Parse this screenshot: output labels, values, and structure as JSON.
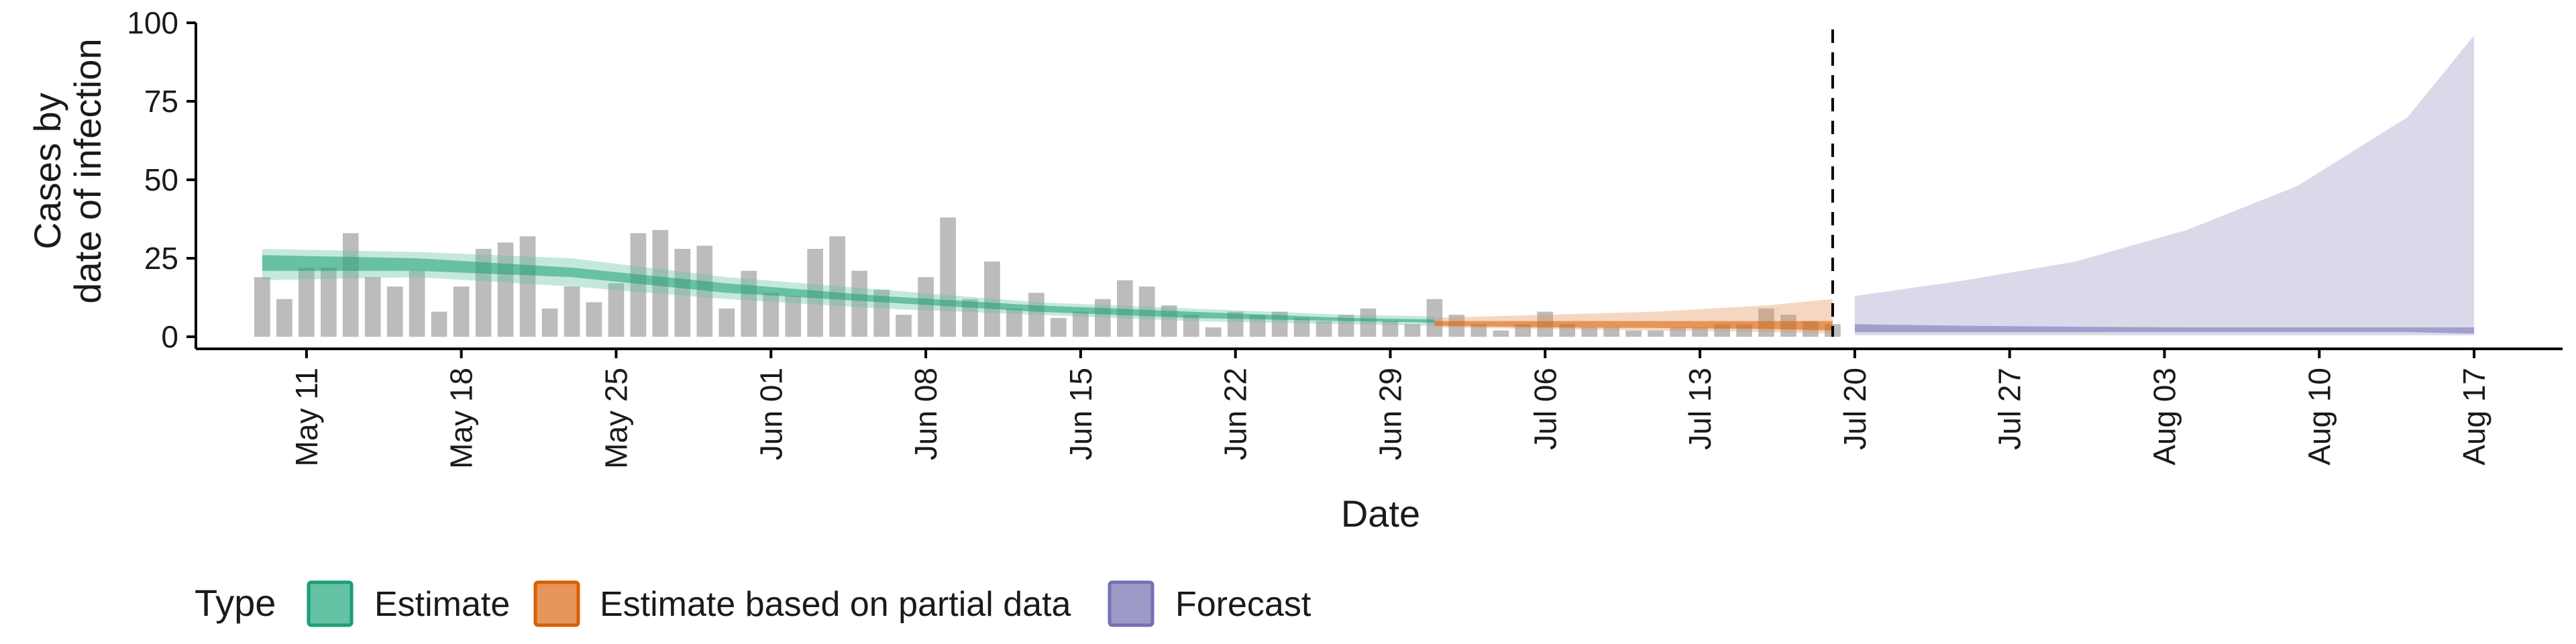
{
  "chart_data": {
    "type": "bar",
    "xlabel": "Date",
    "ylabel_lines": [
      "Cases by",
      "date of infection"
    ],
    "ylim": [
      0,
      100
    ],
    "yticks": [
      0,
      25,
      50,
      75,
      100
    ],
    "x_start": "2020-05-09",
    "x_end": "2020-08-17",
    "xticks": [
      {
        "date": "2020-05-11",
        "label": "May 11"
      },
      {
        "date": "2020-05-18",
        "label": "May 18"
      },
      {
        "date": "2020-05-25",
        "label": "May 25"
      },
      {
        "date": "2020-06-01",
        "label": "Jun 01"
      },
      {
        "date": "2020-06-08",
        "label": "Jun 08"
      },
      {
        "date": "2020-06-15",
        "label": "Jun 15"
      },
      {
        "date": "2020-06-22",
        "label": "Jun 22"
      },
      {
        "date": "2020-06-29",
        "label": "Jun 29"
      },
      {
        "date": "2020-07-06",
        "label": "Jul 06"
      },
      {
        "date": "2020-07-13",
        "label": "Jul 13"
      },
      {
        "date": "2020-07-20",
        "label": "Jul 20"
      },
      {
        "date": "2020-07-27",
        "label": "Jul 27"
      },
      {
        "date": "2020-08-03",
        "label": "Aug 03"
      },
      {
        "date": "2020-08-10",
        "label": "Aug 10"
      },
      {
        "date": "2020-08-17",
        "label": "Aug 17"
      }
    ],
    "vline_date": "2020-07-19",
    "bars_start": "2020-05-09",
    "bar_values": [
      19,
      12,
      22,
      22,
      33,
      19,
      16,
      21,
      8,
      16,
      28,
      30,
      32,
      9,
      16,
      11,
      17,
      33,
      34,
      28,
      29,
      9,
      21,
      14,
      13,
      28,
      32,
      21,
      15,
      7,
      19,
      38,
      12,
      24,
      9,
      14,
      6,
      8,
      12,
      18,
      16,
      10,
      7,
      3,
      8,
      7,
      8,
      6,
      5,
      7,
      9,
      5,
      4,
      12,
      7,
      4,
      2,
      4,
      8,
      4,
      3,
      3,
      2,
      2,
      3,
      3,
      4,
      4,
      9,
      7,
      5,
      4
    ],
    "series": [
      {
        "name": "Estimate",
        "color": "#1b9e77",
        "fill": "#66c2a5",
        "dates": [
          "2020-05-09",
          "2020-05-16",
          "2020-05-23",
          "2020-05-30",
          "2020-06-06",
          "2020-06-13",
          "2020-06-20",
          "2020-06-27",
          "2020-07-01"
        ],
        "outer_lower": [
          18,
          19,
          16,
          12,
          9,
          7,
          5,
          4,
          3.5
        ],
        "outer_upper": [
          28,
          27,
          25,
          19,
          15,
          11,
          9,
          7,
          6.5
        ],
        "inner_lower": [
          21,
          21,
          19,
          14,
          11,
          8,
          6,
          5,
          4.5
        ],
        "inner_upper": [
          26,
          25,
          22,
          17,
          13,
          10,
          8,
          6,
          5.5
        ]
      },
      {
        "name": "Estimate based on partial data",
        "color": "#d95f02",
        "fill": "#e6955c",
        "dates": [
          "2020-07-01",
          "2020-07-06",
          "2020-07-11",
          "2020-07-16",
          "2020-07-19"
        ],
        "outer_lower": [
          3,
          2.5,
          2,
          1.5,
          1
        ],
        "outer_upper": [
          6,
          7,
          8,
          10,
          12
        ],
        "inner_lower": [
          3.5,
          3,
          2.8,
          2.5,
          2
        ],
        "inner_upper": [
          5,
          5,
          5,
          5,
          5
        ]
      },
      {
        "name": "Forecast",
        "color": "#7570b3",
        "fill": "#9e9ac8",
        "dates": [
          "2020-07-20",
          "2020-07-25",
          "2020-07-30",
          "2020-08-04",
          "2020-08-09",
          "2020-08-14",
          "2020-08-17"
        ],
        "outer_lower": [
          0.5,
          0.5,
          0.5,
          0.5,
          0.5,
          0.5,
          0.5
        ],
        "outer_upper": [
          13,
          18,
          24,
          34,
          48,
          70,
          96
        ],
        "inner_lower": [
          1.5,
          1.5,
          1.5,
          1.5,
          1.5,
          1.5,
          1
        ],
        "inner_upper": [
          4,
          3.5,
          3.2,
          3,
          3,
          3,
          3
        ]
      }
    ],
    "legend": {
      "title": "Type",
      "position": "bottom",
      "items": [
        {
          "label": "Estimate",
          "color": "#1b9e77",
          "fill": "#66c2a5"
        },
        {
          "label": "Estimate based on partial data",
          "color": "#d95f02",
          "fill": "#e6955c"
        },
        {
          "label": "Forecast",
          "color": "#7570b3",
          "fill": "#9e9ac8"
        }
      ]
    }
  }
}
